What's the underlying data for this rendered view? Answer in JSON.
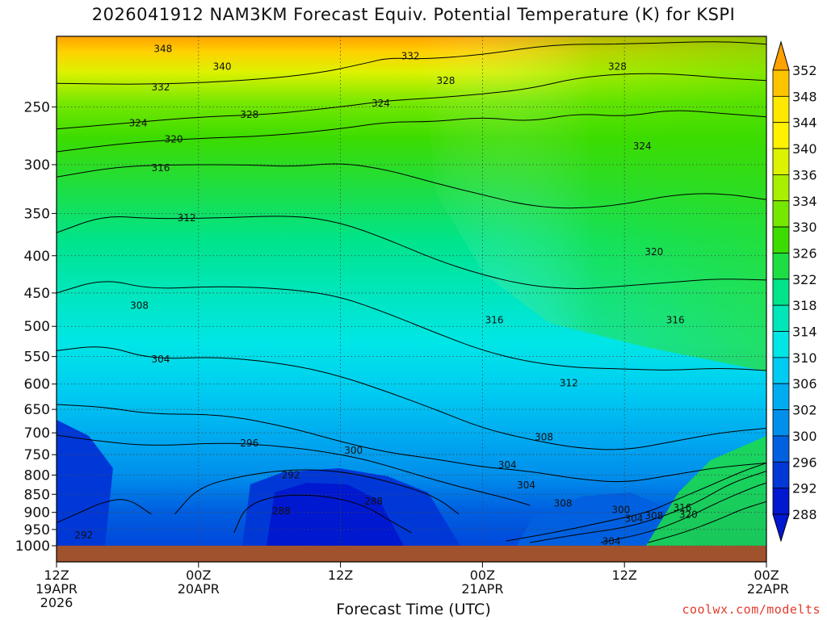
{
  "chart_data": {
    "type": "heatmap",
    "title": "2026041912 NAM3KM Forecast Equiv. Potential Temperature (K) for KSPI",
    "xlabel": "Forecast Time (UTC)",
    "ylabel": "",
    "credit": "coolwx.com/modelts",
    "x_ticks": [
      {
        "hour": 0,
        "lines": [
          "12Z",
          "19APR",
          "2026"
        ]
      },
      {
        "hour": 12,
        "lines": [
          "00Z",
          "20APR"
        ]
      },
      {
        "hour": 24,
        "lines": [
          "12Z"
        ]
      },
      {
        "hour": 36,
        "lines": [
          "00Z",
          "21APR"
        ]
      },
      {
        "hour": 48,
        "lines": [
          "12Z"
        ]
      },
      {
        "hour": 60,
        "lines": [
          "00Z",
          "22APR"
        ]
      }
    ],
    "xlim": [
      0,
      60
    ],
    "y_ticks": [
      "250",
      "300",
      "350",
      "400",
      "450",
      "500",
      "550",
      "600",
      "650",
      "700",
      "750",
      "800",
      "850",
      "900",
      "950",
      "1000"
    ],
    "ylim": [
      200,
      1000
    ],
    "y_scale": "log",
    "grid": true,
    "colorbar": {
      "levels": [
        "352",
        "348",
        "344",
        "340",
        "336",
        "334",
        "330",
        "326",
        "322",
        "318",
        "314",
        "310",
        "306",
        "302",
        "300",
        "296",
        "292",
        "288"
      ],
      "colors": [
        "#ffa200",
        "#ffc400",
        "#ffe800",
        "#fff100",
        "#ddf200",
        "#a8ef00",
        "#76e800",
        "#3cdc00",
        "#1dde44",
        "#00e48a",
        "#00e6bb",
        "#00e6e6",
        "#00cbf2",
        "#00acf0",
        "#0090ec",
        "#0060e0",
        "#0038d8",
        "#0018d0"
      ]
    },
    "contour_labels": [
      {
        "text": "348",
        "hour": 9.0,
        "p": 208
      },
      {
        "text": "340",
        "hour": 14.0,
        "p": 220
      },
      {
        "text": "332",
        "hour": 8.8,
        "p": 235
      },
      {
        "text": "324",
        "hour": 6.9,
        "p": 263
      },
      {
        "text": "328",
        "hour": 16.3,
        "p": 256
      },
      {
        "text": "320",
        "hour": 9.9,
        "p": 277
      },
      {
        "text": "316",
        "hour": 8.8,
        "p": 303
      },
      {
        "text": "312",
        "hour": 11.0,
        "p": 355
      },
      {
        "text": "308",
        "hour": 7.0,
        "p": 468
      },
      {
        "text": "304",
        "hour": 8.8,
        "p": 555
      },
      {
        "text": "296",
        "hour": 16.3,
        "p": 723
      },
      {
        "text": "300",
        "hour": 25.1,
        "p": 740
      },
      {
        "text": "292",
        "hour": 19.8,
        "p": 800
      },
      {
        "text": "288",
        "hour": 19.0,
        "p": 896
      },
      {
        "text": "288",
        "hour": 26.8,
        "p": 869
      },
      {
        "text": "292",
        "hour": 2.3,
        "p": 968
      },
      {
        "text": "332",
        "hour": 29.9,
        "p": 213
      },
      {
        "text": "328",
        "hour": 32.9,
        "p": 230
      },
      {
        "text": "324",
        "hour": 27.4,
        "p": 247
      },
      {
        "text": "316",
        "hour": 37.0,
        "p": 490
      },
      {
        "text": "312",
        "hour": 43.3,
        "p": 598
      },
      {
        "text": "308",
        "hour": 41.2,
        "p": 710
      },
      {
        "text": "304",
        "hour": 38.1,
        "p": 775
      },
      {
        "text": "304",
        "hour": 39.7,
        "p": 826
      },
      {
        "text": "308",
        "hour": 42.8,
        "p": 875
      },
      {
        "text": "300",
        "hour": 47.7,
        "p": 893
      },
      {
        "text": "304",
        "hour": 48.8,
        "p": 918
      },
      {
        "text": "308",
        "hour": 50.5,
        "p": 910
      },
      {
        "text": "316",
        "hour": 52.9,
        "p": 887
      },
      {
        "text": "320",
        "hour": 53.4,
        "p": 907
      },
      {
        "text": "304",
        "hour": 46.9,
        "p": 986
      },
      {
        "text": "328",
        "hour": 47.4,
        "p": 220
      },
      {
        "text": "324",
        "hour": 49.5,
        "p": 283
      },
      {
        "text": "320",
        "hour": 50.5,
        "p": 395
      },
      {
        "text": "316",
        "hour": 52.3,
        "p": 490
      }
    ],
    "contour_lines": [
      {
        "level": 332,
        "points": [
          [
            0,
            232
          ],
          [
            8,
            233
          ],
          [
            16,
            230
          ],
          [
            22,
            225
          ],
          [
            26,
            218
          ],
          [
            28,
            214
          ],
          [
            31,
            215
          ],
          [
            36,
            212
          ],
          [
            42,
            205
          ],
          [
            48,
            205
          ],
          [
            56,
            203
          ],
          [
            60,
            205
          ]
        ]
      },
      {
        "level": 324,
        "points": [
          [
            0,
            268
          ],
          [
            6,
            263
          ],
          [
            12,
            258
          ],
          [
            18,
            256
          ],
          [
            24,
            250
          ],
          [
            28,
            245
          ],
          [
            32,
            243
          ],
          [
            36,
            240
          ],
          [
            40,
            236
          ],
          [
            44,
            228
          ],
          [
            48,
            225
          ],
          [
            52,
            225
          ],
          [
            56,
            228
          ],
          [
            60,
            230
          ]
        ]
      },
      {
        "level": 320,
        "points": [
          [
            0,
            288
          ],
          [
            6,
            280
          ],
          [
            12,
            276
          ],
          [
            18,
            274
          ],
          [
            24,
            268
          ],
          [
            28,
            262
          ],
          [
            32,
            262
          ],
          [
            36,
            258
          ],
          [
            40,
            262
          ],
          [
            44,
            255
          ],
          [
            48,
            258
          ],
          [
            52,
            252
          ],
          [
            56,
            255
          ],
          [
            60,
            258
          ]
        ]
      },
      {
        "level": 316,
        "points": [
          [
            0,
            312
          ],
          [
            5,
            302
          ],
          [
            10,
            300
          ],
          [
            16,
            300
          ],
          [
            20,
            302
          ],
          [
            24,
            298
          ],
          [
            28,
            305
          ],
          [
            32,
            318
          ],
          [
            36,
            330
          ],
          [
            40,
            342
          ],
          [
            44,
            345
          ],
          [
            48,
            340
          ],
          [
            52,
            330
          ],
          [
            56,
            328
          ],
          [
            60,
            335
          ]
        ]
      },
      {
        "level": 312,
        "points": [
          [
            0,
            372
          ],
          [
            4,
            352
          ],
          [
            8,
            356
          ],
          [
            14,
            355
          ],
          [
            20,
            352
          ],
          [
            24,
            360
          ],
          [
            28,
            380
          ],
          [
            32,
            405
          ],
          [
            36,
            425
          ],
          [
            40,
            440
          ],
          [
            44,
            445
          ],
          [
            48,
            440
          ],
          [
            52,
            435
          ],
          [
            56,
            430
          ],
          [
            60,
            432
          ]
        ]
      },
      {
        "level": 308,
        "points": [
          [
            0,
            450
          ],
          [
            4,
            430
          ],
          [
            8,
            445
          ],
          [
            14,
            440
          ],
          [
            20,
            445
          ],
          [
            24,
            455
          ],
          [
            28,
            480
          ],
          [
            32,
            510
          ],
          [
            36,
            540
          ],
          [
            40,
            560
          ],
          [
            44,
            570
          ],
          [
            48,
            572
          ],
          [
            52,
            575
          ],
          [
            56,
            570
          ],
          [
            60,
            575
          ]
        ]
      },
      {
        "level": 304,
        "points": [
          [
            0,
            540
          ],
          [
            4,
            530
          ],
          [
            8,
            555
          ],
          [
            14,
            550
          ],
          [
            20,
            565
          ],
          [
            24,
            585
          ],
          [
            28,
            615
          ],
          [
            32,
            650
          ],
          [
            36,
            690
          ],
          [
            40,
            715
          ],
          [
            44,
            735
          ],
          [
            48,
            740
          ],
          [
            52,
            720
          ],
          [
            56,
            700
          ],
          [
            60,
            690
          ]
        ]
      },
      {
        "level": 300,
        "points": [
          [
            0,
            640
          ],
          [
            4,
            645
          ],
          [
            8,
            660
          ],
          [
            14,
            660
          ],
          [
            20,
            690
          ],
          [
            24,
            720
          ],
          [
            28,
            745
          ],
          [
            32,
            760
          ],
          [
            36,
            780
          ],
          [
            40,
            790
          ],
          [
            44,
            810
          ],
          [
            48,
            820
          ],
          [
            52,
            800
          ],
          [
            56,
            780
          ],
          [
            60,
            770
          ]
        ]
      },
      {
        "level": 296,
        "points": [
          [
            0,
            705
          ],
          [
            4,
            720
          ],
          [
            8,
            730
          ],
          [
            14,
            722
          ],
          [
            18,
            728
          ],
          [
            22,
            740
          ],
          [
            26,
            760
          ],
          [
            30,
            795
          ],
          [
            34,
            830
          ],
          [
            38,
            860
          ],
          [
            40,
            880
          ]
        ]
      },
      {
        "level": 292,
        "points": [
          [
            10,
            905
          ],
          [
            12,
            830
          ],
          [
            16,
            800
          ],
          [
            20,
            785
          ],
          [
            24,
            790
          ],
          [
            28,
            815
          ],
          [
            32,
            855
          ],
          [
            34,
            905
          ]
        ]
      },
      {
        "level": 292,
        "points": [
          [
            0,
            930
          ],
          [
            2,
            900
          ],
          [
            4,
            870
          ],
          [
            6,
            860
          ],
          [
            8,
            905
          ]
        ]
      },
      {
        "level": 288,
        "points": [
          [
            15,
            960
          ],
          [
            16,
            880
          ],
          [
            19,
            850
          ],
          [
            23,
            855
          ],
          [
            26,
            880
          ],
          [
            28,
            920
          ],
          [
            30,
            960
          ]
        ]
      },
      {
        "level": 304,
        "points": [
          [
            38,
            985
          ],
          [
            42,
            960
          ],
          [
            46,
            930
          ],
          [
            50,
            900
          ],
          [
            52,
            870
          ],
          [
            55,
            830
          ],
          [
            58,
            790
          ],
          [
            60,
            770
          ]
        ]
      },
      {
        "level": 308,
        "points": [
          [
            40,
            990
          ],
          [
            44,
            965
          ],
          [
            48,
            945
          ],
          [
            51,
            915
          ],
          [
            54,
            875
          ],
          [
            57,
            820
          ],
          [
            60,
            790
          ]
        ]
      },
      {
        "level": 316,
        "points": [
          [
            46,
            990
          ],
          [
            50,
            960
          ],
          [
            53,
            920
          ],
          [
            56,
            870
          ],
          [
            59,
            830
          ],
          [
            60,
            820
          ]
        ]
      },
      {
        "level": 320,
        "points": [
          [
            50,
            990
          ],
          [
            53,
            960
          ],
          [
            56,
            920
          ],
          [
            58,
            890
          ],
          [
            60,
            870
          ]
        ]
      }
    ]
  }
}
